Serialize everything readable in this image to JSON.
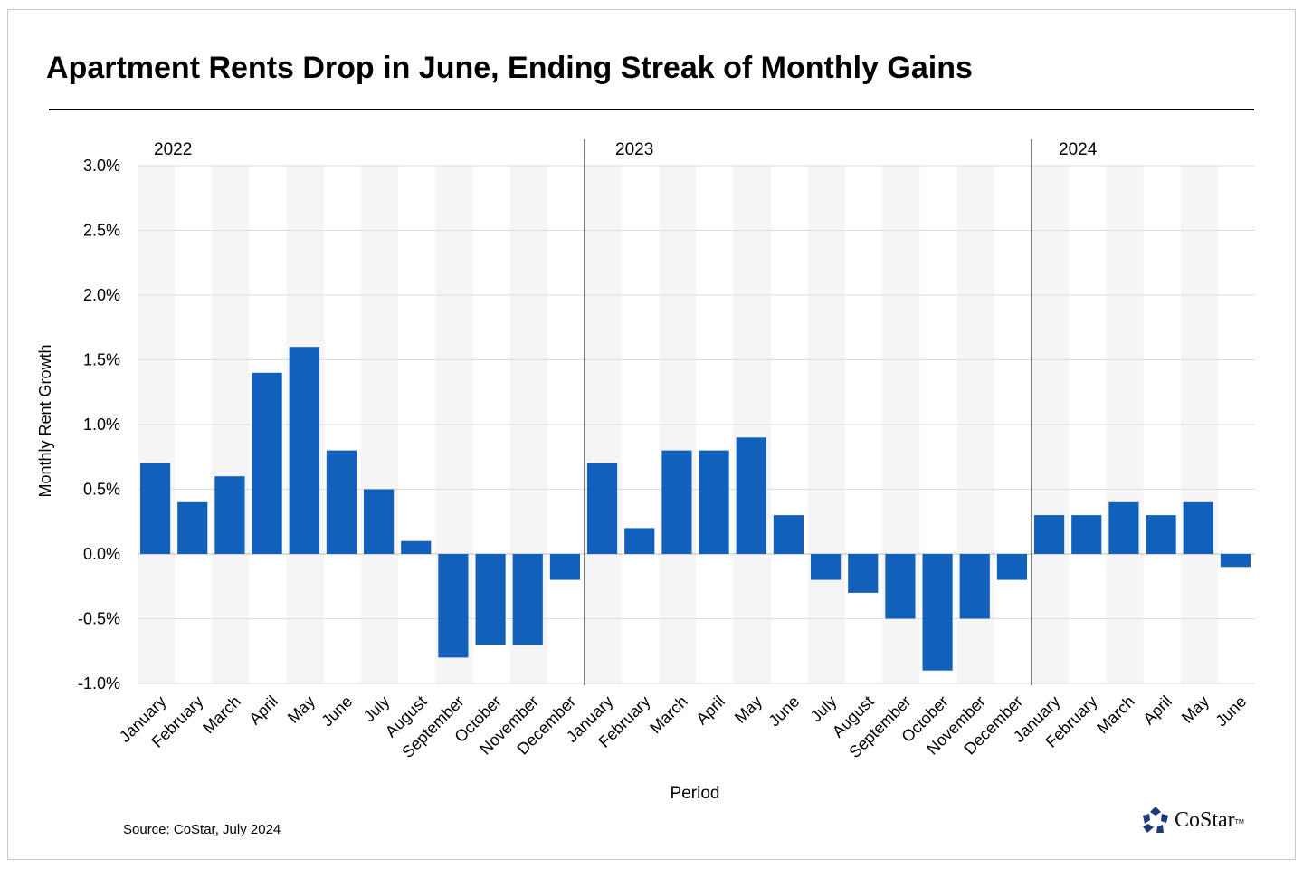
{
  "title": "Apartment Rents Drop in June, Ending Streak of Monthly Gains",
  "source": "Source: CoStar, July 2024",
  "logo": "CoStar",
  "chart_data": {
    "type": "bar",
    "xlabel": "Period",
    "ylabel": "Monthly  Rent Growth",
    "ylim": [
      -1.0,
      3.0
    ],
    "yticks": [
      -1.0,
      -0.5,
      0.0,
      0.5,
      1.0,
      1.5,
      2.0,
      2.5,
      3.0
    ],
    "ytick_labels": [
      "-1.0%",
      "-0.5%",
      "0.0%",
      "0.5%",
      "1.0%",
      "1.5%",
      "2.0%",
      "2.5%",
      "3.0%"
    ],
    "grid": true,
    "bar_color": "#1160BC",
    "groups": [
      {
        "year": "2022",
        "categories": [
          "January",
          "February",
          "March",
          "April",
          "May",
          "June",
          "July",
          "August",
          "September",
          "October",
          "November",
          "December"
        ],
        "values": [
          0.7,
          0.4,
          0.6,
          1.4,
          1.6,
          0.8,
          0.5,
          0.1,
          -0.8,
          -0.7,
          -0.7,
          -0.2
        ]
      },
      {
        "year": "2023",
        "categories": [
          "January",
          "February",
          "March",
          "April",
          "May",
          "June",
          "July",
          "August",
          "September",
          "October",
          "November",
          "December"
        ],
        "values": [
          0.7,
          0.2,
          0.8,
          0.8,
          0.9,
          0.3,
          -0.2,
          -0.3,
          -0.5,
          -0.9,
          -0.5,
          -0.2
        ]
      },
      {
        "year": "2024",
        "categories": [
          "January",
          "February",
          "March",
          "April",
          "May",
          "June"
        ],
        "values": [
          0.3,
          0.3,
          0.4,
          0.3,
          0.4,
          -0.1
        ]
      }
    ]
  }
}
